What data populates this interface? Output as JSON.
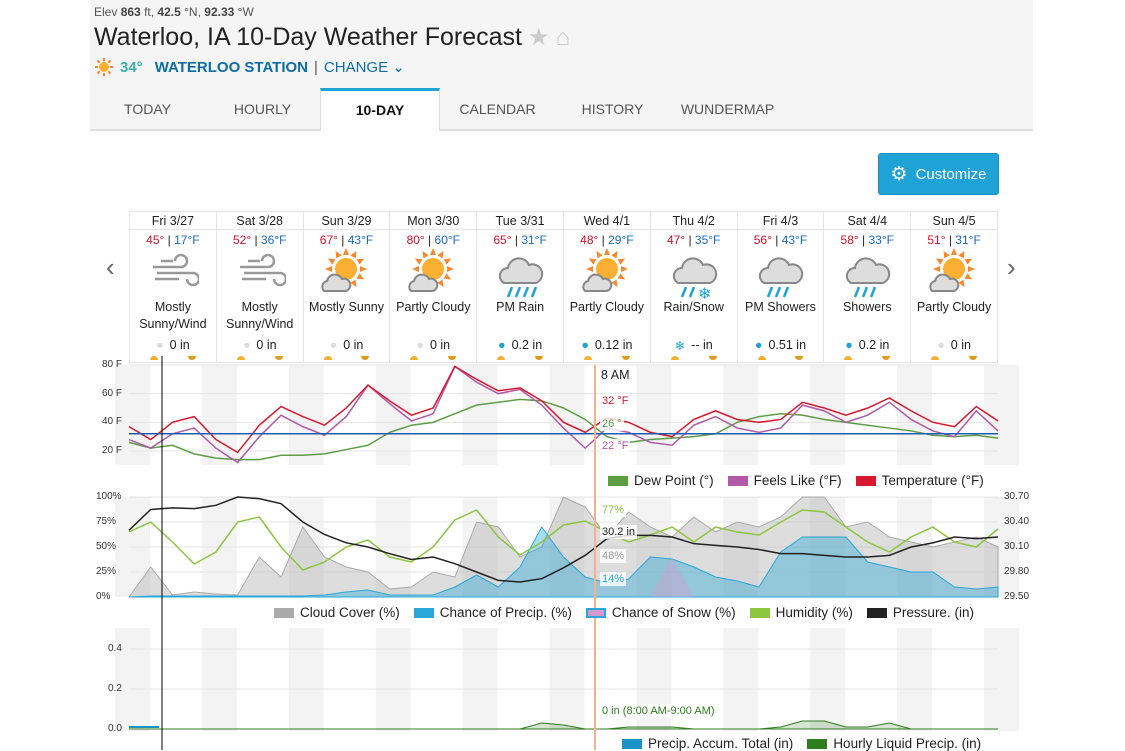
{
  "header": {
    "elev_label": "Elev",
    "elev": "863",
    "elev_unit": "ft,",
    "lat": "42.5",
    "lat_unit": "°N,",
    "lon": "92.33",
    "lon_unit": "°W",
    "title": "Waterloo, IA 10-Day Weather Forecast",
    "current_temp": "34°",
    "station": "WATERLOO STATION",
    "separator": "|",
    "change": "CHANGE"
  },
  "tabs": [
    {
      "label": "TODAY"
    },
    {
      "label": "HOURLY"
    },
    {
      "label": "10-DAY",
      "active": true
    },
    {
      "label": "CALENDAR"
    },
    {
      "label": "HISTORY"
    },
    {
      "label": "WUNDERMAP"
    }
  ],
  "customize_label": "Customize",
  "days": [
    {
      "name": "Fri 3/27",
      "hi": "45°",
      "lo": "17°F",
      "icon": "wind",
      "cond": "Mostly Sunny/Wind",
      "precip": "0 in",
      "picon": "drop-gray"
    },
    {
      "name": "Sat 3/28",
      "hi": "52°",
      "lo": "36°F",
      "icon": "wind",
      "cond": "Mostly Sunny/Wind",
      "precip": "0 in",
      "picon": "drop-gray"
    },
    {
      "name": "Sun 3/29",
      "hi": "67°",
      "lo": "43°F",
      "icon": "sun-cloud",
      "cond": "Mostly Sunny",
      "precip": "0 in",
      "picon": "drop-gray"
    },
    {
      "name": "Mon 3/30",
      "hi": "80°",
      "lo": "60°F",
      "icon": "sun-cloud",
      "cond": "Partly Cloudy",
      "precip": "0 in",
      "picon": "drop-gray"
    },
    {
      "name": "Tue 3/31",
      "hi": "65°",
      "lo": "31°F",
      "icon": "rain",
      "cond": "PM Rain",
      "precip": "0.2 in",
      "picon": "drop-blue"
    },
    {
      "name": "Wed 4/1",
      "hi": "48°",
      "lo": "29°F",
      "icon": "sun-cloud",
      "cond": "Partly Cloudy",
      "precip": "0.12 in",
      "picon": "drop-blue"
    },
    {
      "name": "Thu 4/2",
      "hi": "47°",
      "lo": "35°F",
      "icon": "rain-snow",
      "cond": "Rain/Snow",
      "precip": "-- in",
      "picon": "snowflake"
    },
    {
      "name": "Fri 4/3",
      "hi": "56°",
      "lo": "43°F",
      "icon": "showers",
      "cond": "PM Showers",
      "precip": "0.51 in",
      "picon": "drop-blue"
    },
    {
      "name": "Sat 4/4",
      "hi": "58°",
      "lo": "33°F",
      "icon": "showers",
      "cond": "Showers",
      "precip": "0.2 in",
      "picon": "drop-blue"
    },
    {
      "name": "Sun 4/5",
      "hi": "51°",
      "lo": "31°F",
      "icon": "sun-cloud",
      "cond": "Partly Cloudy",
      "precip": "0 in",
      "picon": "drop-gray"
    }
  ],
  "hover_time": "8 AM",
  "colors": {
    "accent": "#1fa3d6",
    "temp": "#d7192f",
    "feels": "#b05aa8",
    "dew": "#5d9e45",
    "humidity": "#8cc63f",
    "pressure": "#222222",
    "cloud": "#aaaaaa",
    "precip": "#2aa7d8",
    "snow": "#d49ad0",
    "freeze": "#1a5db0",
    "hourly": "#2e7d1e"
  },
  "chart_data": [
    {
      "type": "line",
      "title": "Temperature",
      "yticks": [
        "80 F",
        "60 F",
        "40 F",
        "20 F"
      ],
      "ylim": [
        10,
        82
      ],
      "x_hours_step": 6,
      "series": [
        {
          "name": "Dew Point (°)",
          "values": [
            26,
            22,
            24,
            18,
            15,
            14,
            14,
            17,
            17,
            18,
            21,
            24,
            33,
            38,
            40,
            46,
            52,
            54,
            56,
            55,
            50,
            42,
            30,
            26,
            28,
            29,
            30,
            32,
            40,
            44,
            46,
            45,
            42,
            40,
            38,
            36,
            34,
            31,
            30,
            31,
            29
          ]
        },
        {
          "name": "Feels Like (°F)",
          "values": [
            28,
            22,
            32,
            36,
            22,
            12,
            30,
            45,
            37,
            31,
            44,
            66,
            53,
            41,
            46,
            79,
            68,
            60,
            63,
            52,
            36,
            22,
            36,
            33,
            26,
            24,
            38,
            44,
            36,
            33,
            36,
            52,
            48,
            40,
            45,
            54,
            42,
            34,
            30,
            48,
            34
          ]
        },
        {
          "name": "Temperature (°F)",
          "values": [
            37,
            28,
            40,
            44,
            28,
            19,
            38,
            51,
            44,
            38,
            50,
            66,
            55,
            45,
            50,
            79,
            70,
            62,
            64,
            55,
            40,
            33,
            43,
            40,
            33,
            30,
            42,
            48,
            42,
            40,
            42,
            54,
            50,
            45,
            50,
            57,
            48,
            40,
            37,
            51,
            41
          ]
        }
      ],
      "freezing_line": 32,
      "tooltips": {
        "temp": "32 °F",
        "dew": "26 °",
        "feels": "22 °F"
      }
    },
    {
      "type": "area",
      "title": "Clouds, Precip, Humidity, Pressure",
      "yticks": [
        "100%",
        "75%",
        "50%",
        "25%",
        "0%"
      ],
      "y2ticks": [
        "30.70",
        "30.40",
        "30.10",
        "29.80",
        "29.50"
      ],
      "y2lim": [
        29.5,
        30.7
      ],
      "series": [
        {
          "name": "Cloud Cover (%)",
          "values": [
            0,
            30,
            2,
            5,
            3,
            2,
            40,
            20,
            70,
            40,
            30,
            25,
            8,
            10,
            25,
            20,
            75,
            70,
            40,
            50,
            100,
            90,
            60,
            85,
            70,
            60,
            80,
            65,
            75,
            70,
            80,
            100,
            100,
            70,
            75,
            60,
            55,
            50,
            55,
            60,
            50
          ]
        },
        {
          "name": "Chance of Precip. (%)",
          "values": [
            0,
            1,
            1,
            1,
            1,
            1,
            1,
            1,
            1,
            2,
            5,
            7,
            2,
            2,
            2,
            10,
            22,
            10,
            30,
            70,
            40,
            20,
            14,
            18,
            40,
            38,
            30,
            20,
            16,
            10,
            45,
            60,
            60,
            60,
            35,
            30,
            25,
            25,
            10,
            8,
            10
          ]
        },
        {
          "name": "Chance of Snow (%)",
          "values": [
            0,
            0,
            0,
            0,
            0,
            0,
            0,
            0,
            0,
            0,
            0,
            0,
            0,
            0,
            0,
            0,
            0,
            0,
            0,
            0,
            0,
            0,
            0,
            0,
            0,
            40,
            0,
            0,
            0,
            0,
            0,
            0,
            0,
            0,
            0,
            0,
            0,
            0,
            0,
            0,
            0
          ]
        },
        {
          "name": "Humidity (%)",
          "values": [
            65,
            75,
            55,
            33,
            45,
            75,
            80,
            50,
            27,
            35,
            50,
            57,
            40,
            35,
            50,
            77,
            87,
            60,
            42,
            55,
            72,
            76,
            65,
            55,
            62,
            70,
            55,
            70,
            65,
            62,
            75,
            87,
            85,
            70,
            55,
            45,
            60,
            70,
            55,
            50,
            68
          ]
        },
        {
          "name": "Pressure. (in)",
          "values": [
            30.3,
            30.55,
            30.57,
            30.56,
            30.6,
            30.7,
            30.68,
            30.62,
            30.4,
            30.25,
            30.15,
            30.1,
            30.02,
            29.95,
            29.98,
            29.9,
            29.8,
            29.7,
            29.68,
            29.72,
            29.85,
            30.0,
            30.2,
            30.24,
            30.24,
            30.22,
            30.14,
            30.12,
            30.1,
            30.07,
            30.02,
            30.02,
            30.0,
            29.98,
            29.98,
            30.0,
            30.1,
            30.15,
            30.22,
            30.2,
            30.22
          ]
        }
      ],
      "tooltips": {
        "humidity": "77%",
        "pressure": "30.2 in",
        "cloud": "48%",
        "precip": "14%"
      }
    },
    {
      "type": "area",
      "title": "Precipitation",
      "yticks": [
        "0.4",
        "0.2",
        "0.0"
      ],
      "ylim": [
        0,
        0.5
      ],
      "series": [
        {
          "name": "Precip. Accum. Total (in)",
          "values": [
            0.01
          ]
        },
        {
          "name": "Hourly Liquid Precip. (in)",
          "values": [
            0,
            0,
            0,
            0,
            0,
            0,
            0,
            0,
            0,
            0,
            0,
            0,
            0,
            0,
            0,
            0,
            0,
            0,
            0,
            0.03,
            0.02,
            0,
            0,
            0.01,
            0.01,
            0.01,
            0,
            0,
            0,
            0,
            0.01,
            0.04,
            0.04,
            0.01,
            0.01,
            0.03,
            0,
            0,
            0,
            0,
            0
          ]
        }
      ],
      "tooltip": "0 in (8:00 AM-9:00 AM)"
    }
  ]
}
